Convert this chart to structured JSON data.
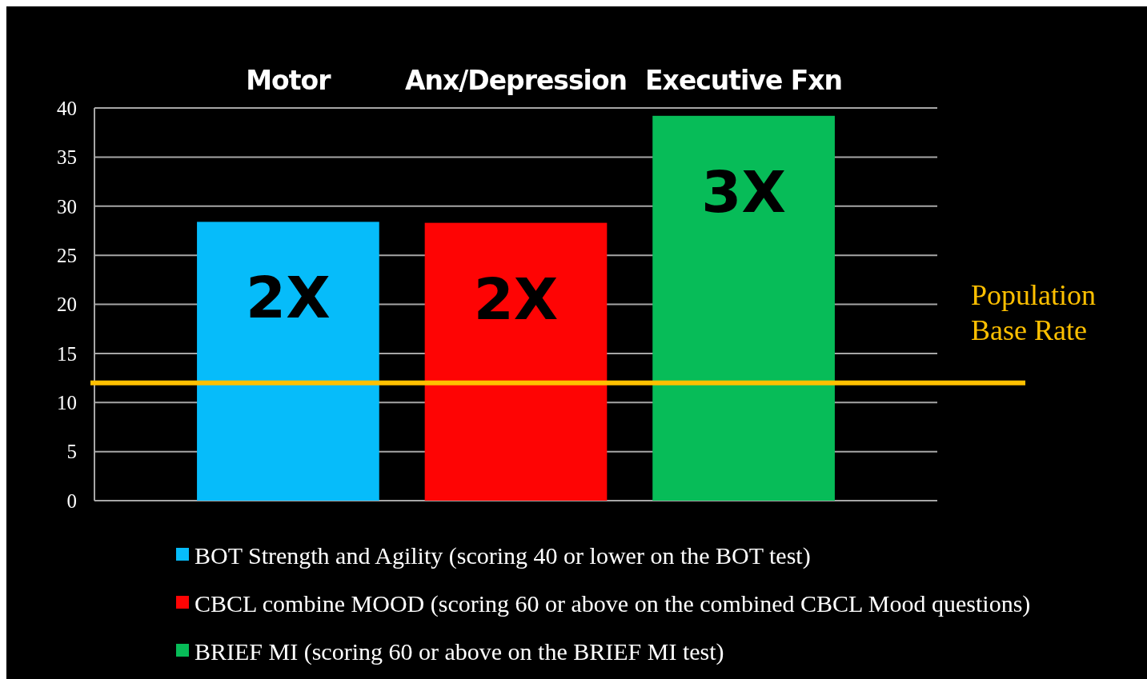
{
  "chart_data": {
    "type": "bar",
    "categories": [
      "Motor",
      "Anx/Depression",
      "Executive Fxn"
    ],
    "series": [
      {
        "name": "BOT Strength and Agility (scoring 40 or lower on the BOT test)",
        "color": "#06bcfa",
        "values": [
          28.4,
          null,
          null
        ]
      },
      {
        "name": "CBCL combine MOOD (scoring 60 or above on the combined CBCL Mood questions)",
        "color": "#fe0404",
        "values": [
          null,
          28.3,
          null
        ]
      },
      {
        "name": "BRIEF MI (scoring 60 or above on the BRIEF MI test)",
        "color": "#07bc58",
        "values": [
          null,
          null,
          39.2
        ]
      }
    ],
    "stacked": true,
    "ylim": [
      0,
      40
    ],
    "yticks": [
      0,
      5,
      10,
      15,
      20,
      25,
      30,
      35,
      40
    ],
    "grid": "y",
    "legend": "bottom",
    "annotations": [
      "2X",
      "2X",
      "3X"
    ],
    "ref_lines": [
      {
        "axis": "y",
        "value": 12,
        "label": "Population Base Rate",
        "color": "#ffc000"
      }
    ]
  }
}
